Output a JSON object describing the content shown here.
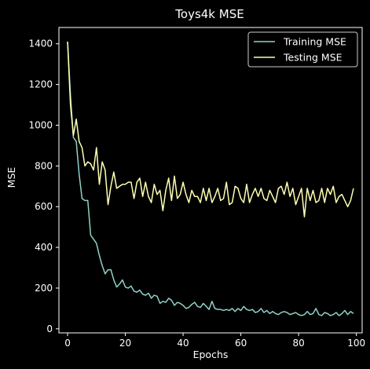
{
  "chart_data": {
    "type": "line",
    "title": "Toys4k MSE",
    "xlabel": "Epochs",
    "ylabel": "MSE",
    "xlim": [
      -3,
      102
    ],
    "ylim": [
      -20,
      1480
    ],
    "xticks": [
      0,
      20,
      40,
      60,
      80,
      100
    ],
    "yticks": [
      0,
      200,
      400,
      600,
      800,
      1000,
      1200,
      1400
    ],
    "grid": false,
    "legend_position": "top-right",
    "series": [
      {
        "name": "Training MSE",
        "color": "#8dd3c7",
        "x": [
          0,
          1,
          2,
          3,
          4,
          5,
          6,
          7,
          8,
          9,
          10,
          11,
          12,
          13,
          14,
          15,
          16,
          17,
          18,
          19,
          20,
          21,
          22,
          23,
          24,
          25,
          26,
          27,
          28,
          29,
          30,
          31,
          32,
          33,
          34,
          35,
          36,
          37,
          38,
          39,
          40,
          41,
          42,
          43,
          44,
          45,
          46,
          47,
          48,
          49,
          50,
          51,
          52,
          53,
          54,
          55,
          56,
          57,
          58,
          59,
          60,
          61,
          62,
          63,
          64,
          65,
          66,
          67,
          68,
          69,
          70,
          71,
          72,
          73,
          74,
          75,
          76,
          77,
          78,
          79,
          80,
          81,
          82,
          83,
          84,
          85,
          86,
          87,
          88,
          89,
          90,
          91,
          92,
          93,
          94,
          95,
          96,
          97,
          98,
          99
        ],
        "y": [
          1410,
          1150,
          940,
          920,
          760,
          640,
          630,
          630,
          460,
          440,
          420,
          360,
          310,
          270,
          290,
          290,
          240,
          205,
          220,
          240,
          205,
          200,
          210,
          185,
          180,
          190,
          170,
          165,
          175,
          150,
          165,
          160,
          125,
          135,
          130,
          150,
          140,
          115,
          130,
          125,
          115,
          100,
          105,
          120,
          130,
          110,
          105,
          125,
          110,
          95,
          135,
          100,
          95,
          95,
          90,
          95,
          90,
          100,
          85,
          100,
          90,
          110,
          95,
          90,
          95,
          80,
          85,
          100,
          80,
          90,
          75,
          85,
          75,
          70,
          80,
          85,
          80,
          70,
          75,
          80,
          70,
          65,
          70,
          85,
          70,
          75,
          100,
          70,
          65,
          80,
          75,
          65,
          70,
          80,
          65,
          75,
          90,
          70,
          85,
          75
        ]
      },
      {
        "name": "Testing MSE",
        "color": "#ffffb3",
        "x": [
          0,
          1,
          2,
          3,
          4,
          5,
          6,
          7,
          8,
          9,
          10,
          11,
          12,
          13,
          14,
          15,
          16,
          17,
          18,
          19,
          20,
          21,
          22,
          23,
          24,
          25,
          26,
          27,
          28,
          29,
          30,
          31,
          32,
          33,
          34,
          35,
          36,
          37,
          38,
          39,
          40,
          41,
          42,
          43,
          44,
          45,
          46,
          47,
          48,
          49,
          50,
          51,
          52,
          53,
          54,
          55,
          56,
          57,
          58,
          59,
          60,
          61,
          62,
          63,
          64,
          65,
          66,
          67,
          68,
          69,
          70,
          71,
          72,
          73,
          74,
          75,
          76,
          77,
          78,
          79,
          80,
          81,
          82,
          83,
          84,
          85,
          86,
          87,
          88,
          89,
          90,
          91,
          92,
          93,
          94,
          95,
          96,
          97,
          98,
          99
        ],
        "y": [
          1410,
          1100,
          950,
          1030,
          920,
          890,
          800,
          820,
          810,
          780,
          890,
          710,
          820,
          780,
          610,
          700,
          770,
          690,
          700,
          710,
          710,
          720,
          720,
          640,
          720,
          740,
          650,
          720,
          650,
          620,
          710,
          660,
          680,
          580,
          680,
          740,
          630,
          750,
          640,
          660,
          720,
          660,
          620,
          680,
          650,
          650,
          620,
          690,
          630,
          690,
          620,
          650,
          690,
          630,
          640,
          720,
          610,
          620,
          700,
          690,
          640,
          620,
          710,
          620,
          660,
          690,
          650,
          690,
          640,
          630,
          680,
          650,
          620,
          690,
          700,
          660,
          720,
          650,
          690,
          610,
          650,
          690,
          550,
          690,
          630,
          680,
          620,
          630,
          690,
          620,
          690,
          660,
          700,
          620,
          650,
          660,
          630,
          600,
          630,
          690
        ]
      }
    ]
  }
}
